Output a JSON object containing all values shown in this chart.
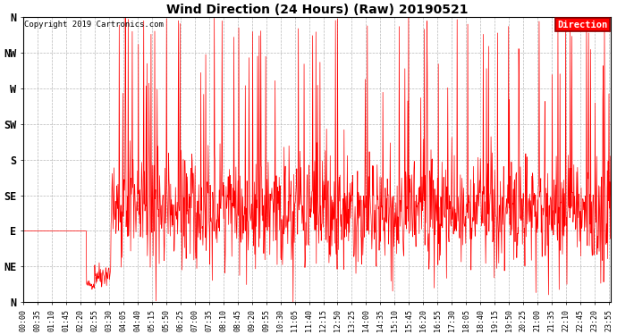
{
  "title": "Wind Direction (24 Hours) (Raw) 20190521",
  "copyright": "Copyright 2019 Cartronics.com",
  "legend_label": "Direction",
  "line_color": "#ff0000",
  "background_color": "#ffffff",
  "grid_color": "#b0b0b0",
  "ytick_labels": [
    "N",
    "NE",
    "E",
    "SE",
    "S",
    "SW",
    "W",
    "NW",
    "N"
  ],
  "ytick_values": [
    0,
    45,
    90,
    135,
    180,
    225,
    270,
    315,
    360
  ],
  "ylim": [
    0,
    360
  ],
  "xtick_interval_minutes": 35,
  "total_minutes": 1440,
  "seed": 42,
  "figwidth": 6.9,
  "figheight": 3.75,
  "dpi": 100
}
